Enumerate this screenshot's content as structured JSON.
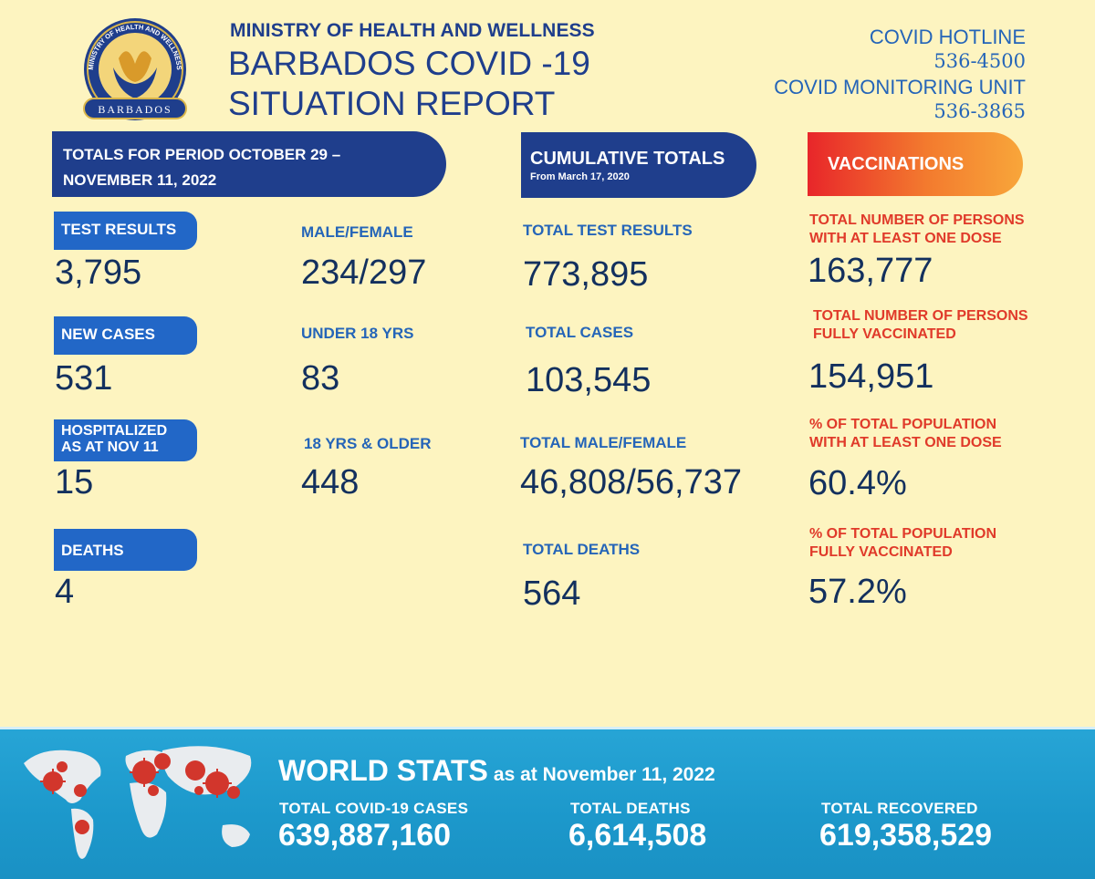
{
  "header": {
    "ministry": "MINISTRY OF HEALTH AND WELLNESS",
    "title_line1": "BARBADOS COVID -19",
    "title_line2": "SITUATION REPORT",
    "logo_text_top": "MINISTRY OF HEALTH AND WELLNESS",
    "logo_text_bottom": "BARBADOS"
  },
  "hotlines": {
    "hotline_label": "COVID HOTLINE",
    "hotline_number": "536-4500",
    "monitoring_label": "COVID MONITORING UNIT",
    "monitoring_number": "536-3865"
  },
  "period": {
    "banner_line1": "TOTALS FOR PERIOD OCTOBER 29 –",
    "banner_line2": "NOVEMBER 11, 2022",
    "test_results_label": "TEST RESULTS",
    "test_results_value": "3,795",
    "new_cases_label": "NEW CASES",
    "new_cases_value": "531",
    "hospitalized_line1": "HOSPITALIZED",
    "hospitalized_line2": "AS AT NOV 11",
    "hospitalized_value": "15",
    "deaths_label": "DEATHS",
    "deaths_value": "4",
    "male_female_label": "MALE/FEMALE",
    "male_female_value": "234/297",
    "under18_label": "UNDER 18 YRS",
    "under18_value": "83",
    "over18_label": "18 YRS & OLDER",
    "over18_value": "448"
  },
  "cumulative": {
    "banner_title": "CUMULATIVE TOTALS",
    "banner_subtitle": "From March 17, 2020",
    "test_results_label": "TOTAL TEST RESULTS",
    "test_results_value": "773,895",
    "cases_label": "TOTAL CASES",
    "cases_value": "103,545",
    "male_female_label": "TOTAL MALE/FEMALE",
    "male_female_value": "46,808/56,737",
    "deaths_label": "TOTAL DEATHS",
    "deaths_value": "564"
  },
  "vaccinations": {
    "banner_title": "VACCINATIONS",
    "one_dose_line1": "TOTAL NUMBER OF PERSONS",
    "one_dose_line2": "WITH AT LEAST ONE DOSE",
    "one_dose_value": "163,777",
    "fully_line1": "TOTAL NUMBER OF PERSONS",
    "fully_line2": "FULLY VACCINATED",
    "fully_value": "154,951",
    "pct_one_line1": "% OF TOTAL POPULATION",
    "pct_one_line2": "WITH AT LEAST ONE DOSE",
    "pct_one_value": "60.4%",
    "pct_fully_line1": "% OF TOTAL POPULATION",
    "pct_fully_line2": "FULLY VACCINATED",
    "pct_fully_value": "57.2%"
  },
  "world": {
    "title": "WORLD STATS",
    "as_at": "as at  November 11, 2022",
    "cases_label": "TOTAL COVID-19 CASES",
    "cases_value": "639,887,160",
    "deaths_label": "TOTAL  DEATHS",
    "deaths_value": "6,614,508",
    "recovered_label": "TOTAL  RECOVERED",
    "recovered_value": "619,358,529"
  },
  "colors": {
    "navy": "#1f3e8c",
    "blue": "#2267c7",
    "label_blue": "#2565b8",
    "red": "#e03a2a",
    "background": "#fdf4c0",
    "world_band": "#1c98cb"
  }
}
